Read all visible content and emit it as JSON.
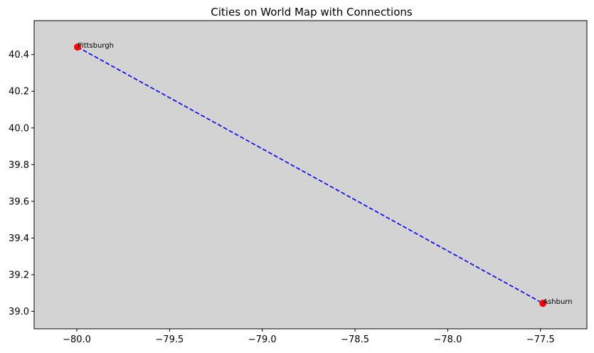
{
  "chart_data": {
    "type": "scatter",
    "title": "Cities on World Map with Connections",
    "xlabel": "",
    "ylabel": "",
    "xlim": [
      -80.23,
      -77.25
    ],
    "ylim": [
      38.905,
      40.585
    ],
    "grid": false,
    "background_color": "#d3d3d3",
    "point_color": "#ff0000",
    "line_color": "#0000ff",
    "line_style": "dashed",
    "x_ticks": [
      {
        "value": -80.0,
        "label": "−80.0"
      },
      {
        "value": -79.5,
        "label": "−79.5"
      },
      {
        "value": -79.0,
        "label": "−79.0"
      },
      {
        "value": -78.5,
        "label": "−78.5"
      },
      {
        "value": -78.0,
        "label": "−78.0"
      },
      {
        "value": -77.5,
        "label": "−77.5"
      }
    ],
    "y_ticks": [
      {
        "value": 39.0,
        "label": "39.0"
      },
      {
        "value": 39.2,
        "label": "39.2"
      },
      {
        "value": 39.4,
        "label": "39.4"
      },
      {
        "value": 39.6,
        "label": "39.6"
      },
      {
        "value": 39.8,
        "label": "39.8"
      },
      {
        "value": 40.0,
        "label": "40.0"
      },
      {
        "value": 40.2,
        "label": "40.2"
      },
      {
        "value": 40.4,
        "label": "40.4"
      }
    ],
    "points": [
      {
        "label": "Pittsburgh",
        "x": -79.996,
        "y": 40.441
      },
      {
        "label": "Ashburn",
        "x": -77.487,
        "y": 39.044
      }
    ],
    "connections": [
      {
        "from": 0,
        "to": 1
      }
    ]
  }
}
